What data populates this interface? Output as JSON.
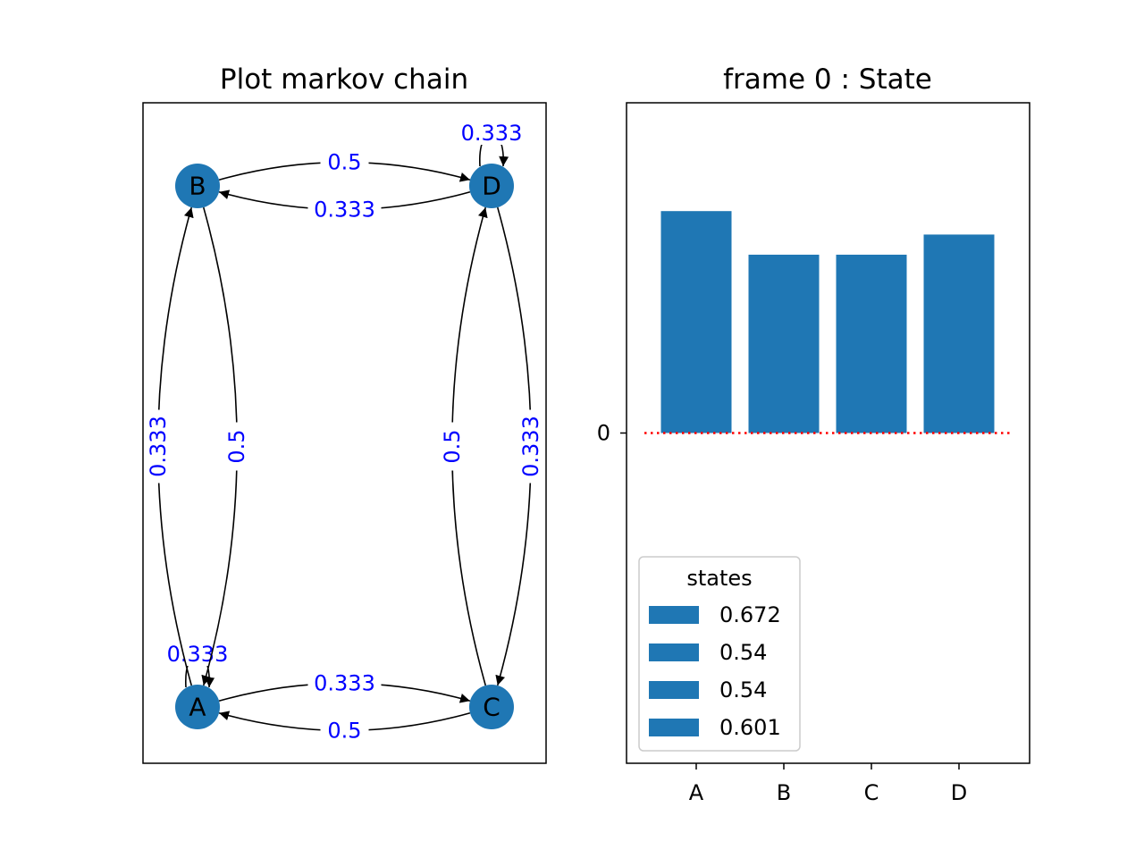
{
  "chart_data": [
    {
      "type": "graph",
      "title": "Plot markov chain",
      "nodes": [
        "A",
        "B",
        "C",
        "D"
      ],
      "edges": [
        {
          "from": "A",
          "to": "A",
          "label": "0.333"
        },
        {
          "from": "A",
          "to": "B",
          "label": "0.333"
        },
        {
          "from": "A",
          "to": "C",
          "label": "0.333"
        },
        {
          "from": "B",
          "to": "A",
          "label": "0.5"
        },
        {
          "from": "B",
          "to": "D",
          "label": "0.5"
        },
        {
          "from": "C",
          "to": "A",
          "label": "0.5"
        },
        {
          "from": "C",
          "to": "D",
          "label": "0.5"
        },
        {
          "from": "D",
          "to": "B",
          "label": "0.333"
        },
        {
          "from": "D",
          "to": "C",
          "label": "0.333"
        },
        {
          "from": "D",
          "to": "D",
          "label": "0.333"
        }
      ],
      "colors": {
        "node": "#1f77b4",
        "edge_label": "#0000ff",
        "edge": "#000000"
      }
    },
    {
      "type": "bar",
      "title": "frame 0 : State",
      "categories": [
        "A",
        "B",
        "C",
        "D"
      ],
      "values": [
        0.672,
        0.54,
        0.54,
        0.601
      ],
      "ylim": [
        -1,
        1
      ],
      "yticks": [
        "0"
      ],
      "reference_line": {
        "y": 0,
        "color": "#ff0000",
        "style": "dotted"
      },
      "legend": {
        "title": "states",
        "entries": [
          "0.672",
          "0.54",
          "0.54",
          "0.601"
        ],
        "placement": "lower-left"
      },
      "colors": {
        "bar": "#1f77b4"
      },
      "xlabel": "",
      "ylabel": ""
    }
  ]
}
